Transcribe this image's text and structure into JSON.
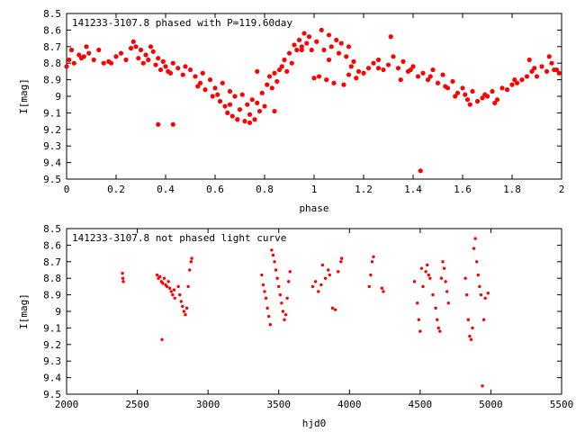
{
  "chart_data": [
    {
      "type": "scatter",
      "title": "141233-3107.8 phased with P=119.60day",
      "xlabel": "phase",
      "ylabel": "I[mag]",
      "xlim": [
        0,
        2
      ],
      "ylim": [
        9.5,
        8.5
      ],
      "y_inverted": true,
      "xticks": [
        "0",
        "0.2",
        "0.4",
        "0.6",
        "0.8",
        "1",
        "1.2",
        "1.4",
        "1.6",
        "1.8",
        "2"
      ],
      "yticks": [
        "8.5",
        "8.6",
        "8.7",
        "8.8",
        "8.9",
        "9",
        "9.1",
        "9.2",
        "9.3",
        "9.4",
        "9.5"
      ],
      "grid": false,
      "marker_color": "#ff0000",
      "points": [
        [
          0.0,
          8.82
        ],
        [
          0.01,
          8.78
        ],
        [
          0.02,
          8.72
        ],
        [
          0.03,
          8.8
        ],
        [
          0.05,
          8.75
        ],
        [
          0.06,
          8.77
        ],
        [
          0.08,
          8.7
        ],
        [
          0.09,
          8.74
        ],
        [
          0.11,
          8.78
        ],
        [
          0.13,
          8.72
        ],
        [
          0.15,
          8.8
        ],
        [
          0.17,
          8.79
        ],
        [
          0.2,
          8.76
        ],
        [
          0.22,
          8.74
        ],
        [
          0.24,
          8.78
        ],
        [
          0.26,
          8.71
        ],
        [
          0.27,
          8.67
        ],
        [
          0.28,
          8.7
        ],
        [
          0.29,
          8.77
        ],
        [
          0.3,
          8.72
        ],
        [
          0.31,
          8.8
        ],
        [
          0.32,
          8.75
        ],
        [
          0.33,
          8.78
        ],
        [
          0.34,
          8.7
        ],
        [
          0.35,
          8.73
        ],
        [
          0.36,
          8.81
        ],
        [
          0.37,
          8.77
        ],
        [
          0.38,
          8.84
        ],
        [
          0.39,
          8.79
        ],
        [
          0.4,
          8.82
        ],
        [
          0.42,
          8.86
        ],
        [
          0.43,
          8.8
        ],
        [
          0.45,
          8.83
        ],
        [
          0.47,
          8.87
        ],
        [
          0.48,
          8.82
        ],
        [
          0.5,
          8.84
        ],
        [
          0.52,
          8.88
        ],
        [
          0.54,
          8.92
        ],
        [
          0.55,
          8.86
        ],
        [
          0.56,
          8.96
        ],
        [
          0.58,
          8.9
        ],
        [
          0.6,
          8.95
        ],
        [
          0.61,
          8.99
        ],
        [
          0.62,
          9.03
        ],
        [
          0.63,
          8.92
        ],
        [
          0.64,
          9.06
        ],
        [
          0.65,
          9.1
        ],
        [
          0.66,
          8.97
        ],
        [
          0.67,
          9.12
        ],
        [
          0.68,
          9.0
        ],
        [
          0.69,
          9.14
        ],
        [
          0.7,
          9.08
        ],
        [
          0.71,
          8.99
        ],
        [
          0.72,
          9.15
        ],
        [
          0.73,
          9.05
        ],
        [
          0.74,
          9.11
        ],
        [
          0.75,
          9.02
        ],
        [
          0.76,
          9.14
        ],
        [
          0.77,
          9.04
        ],
        [
          0.78,
          9.09
        ],
        [
          0.79,
          8.98
        ],
        [
          0.8,
          9.06
        ],
        [
          0.81,
          8.93
        ],
        [
          0.82,
          8.88
        ],
        [
          0.83,
          8.95
        ],
        [
          0.84,
          8.86
        ],
        [
          0.85,
          8.91
        ],
        [
          0.86,
          8.84
        ],
        [
          0.87,
          8.82
        ],
        [
          0.88,
          8.78
        ],
        [
          0.89,
          8.85
        ],
        [
          0.9,
          8.74
        ],
        [
          0.91,
          8.8
        ],
        [
          0.92,
          8.69
        ],
        [
          0.93,
          8.72
        ],
        [
          0.94,
          8.66
        ],
        [
          0.95,
          8.7
        ],
        [
          0.96,
          8.62
        ],
        [
          0.97,
          8.68
        ],
        [
          0.98,
          8.64
        ],
        [
          0.99,
          8.72
        ],
        [
          1.0,
          8.89
        ],
        [
          1.01,
          8.67
        ],
        [
          1.02,
          8.88
        ],
        [
          1.03,
          8.6
        ],
        [
          1.04,
          8.72
        ],
        [
          1.05,
          8.9
        ],
        [
          1.06,
          8.63
        ],
        [
          1.07,
          8.7
        ],
        [
          1.08,
          8.92
        ],
        [
          1.09,
          8.66
        ],
        [
          1.1,
          8.74
        ],
        [
          1.11,
          8.68
        ],
        [
          1.12,
          8.93
        ],
        [
          1.13,
          8.76
        ],
        [
          1.14,
          8.7
        ],
        [
          1.15,
          8.82
        ],
        [
          1.16,
          8.79
        ],
        [
          1.17,
          8.89
        ],
        [
          1.18,
          8.85
        ],
        [
          1.2,
          8.86
        ],
        [
          1.22,
          8.83
        ],
        [
          1.24,
          8.8
        ],
        [
          1.26,
          8.78
        ],
        [
          1.28,
          8.84
        ],
        [
          1.3,
          8.81
        ],
        [
          1.32,
          8.76
        ],
        [
          1.34,
          8.83
        ],
        [
          1.36,
          8.79
        ],
        [
          1.38,
          8.85
        ],
        [
          1.4,
          8.82
        ],
        [
          1.42,
          8.88
        ],
        [
          1.44,
          8.86
        ],
        [
          1.46,
          8.9
        ],
        [
          1.48,
          8.84
        ],
        [
          1.5,
          8.92
        ],
        [
          1.52,
          8.87
        ],
        [
          1.54,
          8.95
        ],
        [
          1.56,
          8.91
        ],
        [
          1.58,
          8.98
        ],
        [
          1.6,
          8.95
        ],
        [
          1.62,
          9.02
        ],
        [
          1.63,
          9.05
        ],
        [
          1.64,
          8.97
        ],
        [
          1.66,
          9.03
        ],
        [
          1.68,
          9.01
        ],
        [
          1.7,
          9.0
        ],
        [
          1.72,
          8.97
        ],
        [
          1.74,
          9.02
        ],
        [
          1.76,
          8.95
        ],
        [
          1.78,
          8.96
        ],
        [
          1.8,
          8.93
        ],
        [
          1.82,
          8.92
        ],
        [
          1.84,
          8.9
        ],
        [
          1.86,
          8.88
        ],
        [
          1.88,
          8.85
        ],
        [
          1.9,
          8.88
        ],
        [
          1.92,
          8.82
        ],
        [
          1.94,
          8.85
        ],
        [
          1.96,
          8.8
        ],
        [
          1.98,
          8.84
        ],
        [
          1.99,
          8.86
        ],
        [
          0.07,
          8.76
        ],
        [
          0.18,
          8.8
        ],
        [
          0.41,
          8.85
        ],
        [
          0.53,
          8.94
        ],
        [
          0.59,
          9.0
        ],
        [
          0.66,
          9.05
        ],
        [
          0.74,
          9.16
        ],
        [
          0.77,
          8.85
        ],
        [
          0.84,
          9.09
        ],
        [
          0.95,
          8.72
        ],
        [
          1.06,
          8.78
        ],
        [
          1.14,
          8.87
        ],
        [
          1.26,
          8.83
        ],
        [
          1.31,
          8.64
        ],
        [
          1.35,
          8.9
        ],
        [
          1.39,
          8.84
        ],
        [
          1.47,
          8.88
        ],
        [
          1.53,
          8.94
        ],
        [
          1.57,
          9.0
        ],
        [
          1.61,
          8.99
        ],
        [
          1.69,
          8.99
        ],
        [
          1.73,
          9.04
        ],
        [
          1.81,
          8.9
        ],
        [
          1.87,
          8.78
        ],
        [
          1.89,
          8.83
        ],
        [
          1.95,
          8.76
        ],
        [
          1.97,
          8.84
        ],
        [
          0.37,
          9.17
        ],
        [
          0.43,
          9.17
        ],
        [
          1.43,
          9.45
        ]
      ]
    },
    {
      "type": "scatter",
      "title": "141233-3107.8 not phased light curve",
      "xlabel": "hjd0",
      "ylabel": "I[mag]",
      "xlim": [
        2000,
        5500
      ],
      "ylim": [
        9.5,
        8.5
      ],
      "y_inverted": true,
      "xticks": [
        "2000",
        "2500",
        "3000",
        "3500",
        "4000",
        "4500",
        "5000",
        "5500"
      ],
      "yticks": [
        "8.5",
        "8.6",
        "8.7",
        "8.8",
        "8.9",
        "9",
        "9.1",
        "9.2",
        "9.3",
        "9.4",
        "9.5"
      ],
      "grid": false,
      "marker_color": "#ff0000",
      "points": [
        [
          2395,
          8.77
        ],
        [
          2398,
          8.8
        ],
        [
          2401,
          8.82
        ],
        [
          2640,
          8.78
        ],
        [
          2650,
          8.8
        ],
        [
          2660,
          8.79
        ],
        [
          2670,
          8.82
        ],
        [
          2675,
          9.17
        ],
        [
          2680,
          8.83
        ],
        [
          2690,
          8.8
        ],
        [
          2700,
          8.84
        ],
        [
          2710,
          8.85
        ],
        [
          2720,
          8.82
        ],
        [
          2730,
          8.86
        ],
        [
          2740,
          8.88
        ],
        [
          2750,
          8.9
        ],
        [
          2760,
          8.87
        ],
        [
          2765,
          8.92
        ],
        [
          2790,
          8.85
        ],
        [
          2800,
          8.9
        ],
        [
          2810,
          8.94
        ],
        [
          2820,
          8.97
        ],
        [
          2830,
          9.0
        ],
        [
          2840,
          9.02
        ],
        [
          2850,
          8.98
        ],
        [
          2860,
          8.85
        ],
        [
          2870,
          8.75
        ],
        [
          2880,
          8.7
        ],
        [
          2885,
          8.68
        ],
        [
          3380,
          8.78
        ],
        [
          3390,
          8.84
        ],
        [
          3400,
          8.88
        ],
        [
          3410,
          8.92
        ],
        [
          3420,
          8.98
        ],
        [
          3430,
          9.03
        ],
        [
          3440,
          9.08
        ],
        [
          3450,
          8.63
        ],
        [
          3460,
          8.66
        ],
        [
          3470,
          8.7
        ],
        [
          3480,
          8.75
        ],
        [
          3490,
          8.8
        ],
        [
          3500,
          8.85
        ],
        [
          3510,
          8.9
        ],
        [
          3520,
          8.95
        ],
        [
          3530,
          9.0
        ],
        [
          3540,
          9.05
        ],
        [
          3550,
          9.02
        ],
        [
          3560,
          8.92
        ],
        [
          3570,
          8.82
        ],
        [
          3580,
          8.76
        ],
        [
          3740,
          8.85
        ],
        [
          3760,
          8.82
        ],
        [
          3780,
          8.88
        ],
        [
          3800,
          8.84
        ],
        [
          3810,
          8.72
        ],
        [
          3830,
          8.8
        ],
        [
          3850,
          8.75
        ],
        [
          3860,
          8.78
        ],
        [
          3880,
          8.98
        ],
        [
          3900,
          8.99
        ],
        [
          3920,
          8.76
        ],
        [
          3940,
          8.7
        ],
        [
          3945,
          8.68
        ],
        [
          4140,
          8.85
        ],
        [
          4150,
          8.78
        ],
        [
          4160,
          8.7
        ],
        [
          4170,
          8.67
        ],
        [
          4230,
          8.86
        ],
        [
          4240,
          8.88
        ],
        [
          4460,
          8.82
        ],
        [
          4480,
          8.95
        ],
        [
          4490,
          9.05
        ],
        [
          4500,
          9.12
        ],
        [
          4510,
          8.74
        ],
        [
          4520,
          8.85
        ],
        [
          4540,
          8.76
        ],
        [
          4550,
          8.72
        ],
        [
          4560,
          8.78
        ],
        [
          4570,
          8.8
        ],
        [
          4590,
          8.9
        ],
        [
          4610,
          8.98
        ],
        [
          4620,
          9.05
        ],
        [
          4630,
          9.1
        ],
        [
          4640,
          9.12
        ],
        [
          4650,
          8.8
        ],
        [
          4660,
          8.7
        ],
        [
          4670,
          8.74
        ],
        [
          4680,
          8.82
        ],
        [
          4690,
          8.88
        ],
        [
          4700,
          8.95
        ],
        [
          4820,
          8.8
        ],
        [
          4830,
          8.9
        ],
        [
          4840,
          9.05
        ],
        [
          4850,
          9.15
        ],
        [
          4860,
          9.17
        ],
        [
          4870,
          9.1
        ],
        [
          4880,
          8.62
        ],
        [
          4890,
          8.56
        ],
        [
          4900,
          8.7
        ],
        [
          4910,
          8.78
        ],
        [
          4920,
          8.85
        ],
        [
          4930,
          8.9
        ],
        [
          4940,
          9.45
        ],
        [
          4950,
          9.05
        ],
        [
          4960,
          8.92
        ],
        [
          4980,
          8.89
        ]
      ]
    }
  ]
}
